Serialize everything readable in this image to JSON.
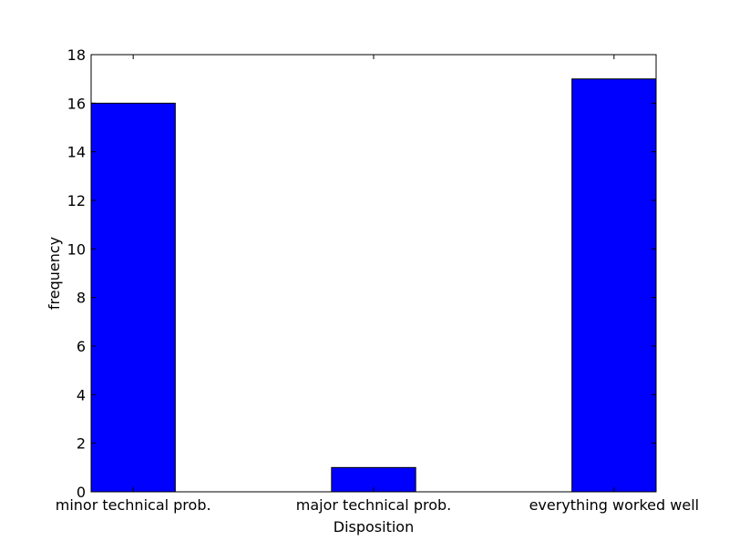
{
  "chart_data": {
    "type": "bar",
    "title": "",
    "xlabel": "Disposition",
    "ylabel": "frequency",
    "categories": [
      "minor technical prob.",
      "major technical prob.",
      "everything worked well"
    ],
    "values": [
      16,
      1,
      17
    ],
    "ylim": [
      0,
      18
    ],
    "yticks": [
      0,
      2,
      4,
      6,
      8,
      10,
      12,
      14,
      16,
      18
    ],
    "grid": false,
    "colors": {
      "bar": "#0000ff",
      "edge": "#000000"
    }
  }
}
